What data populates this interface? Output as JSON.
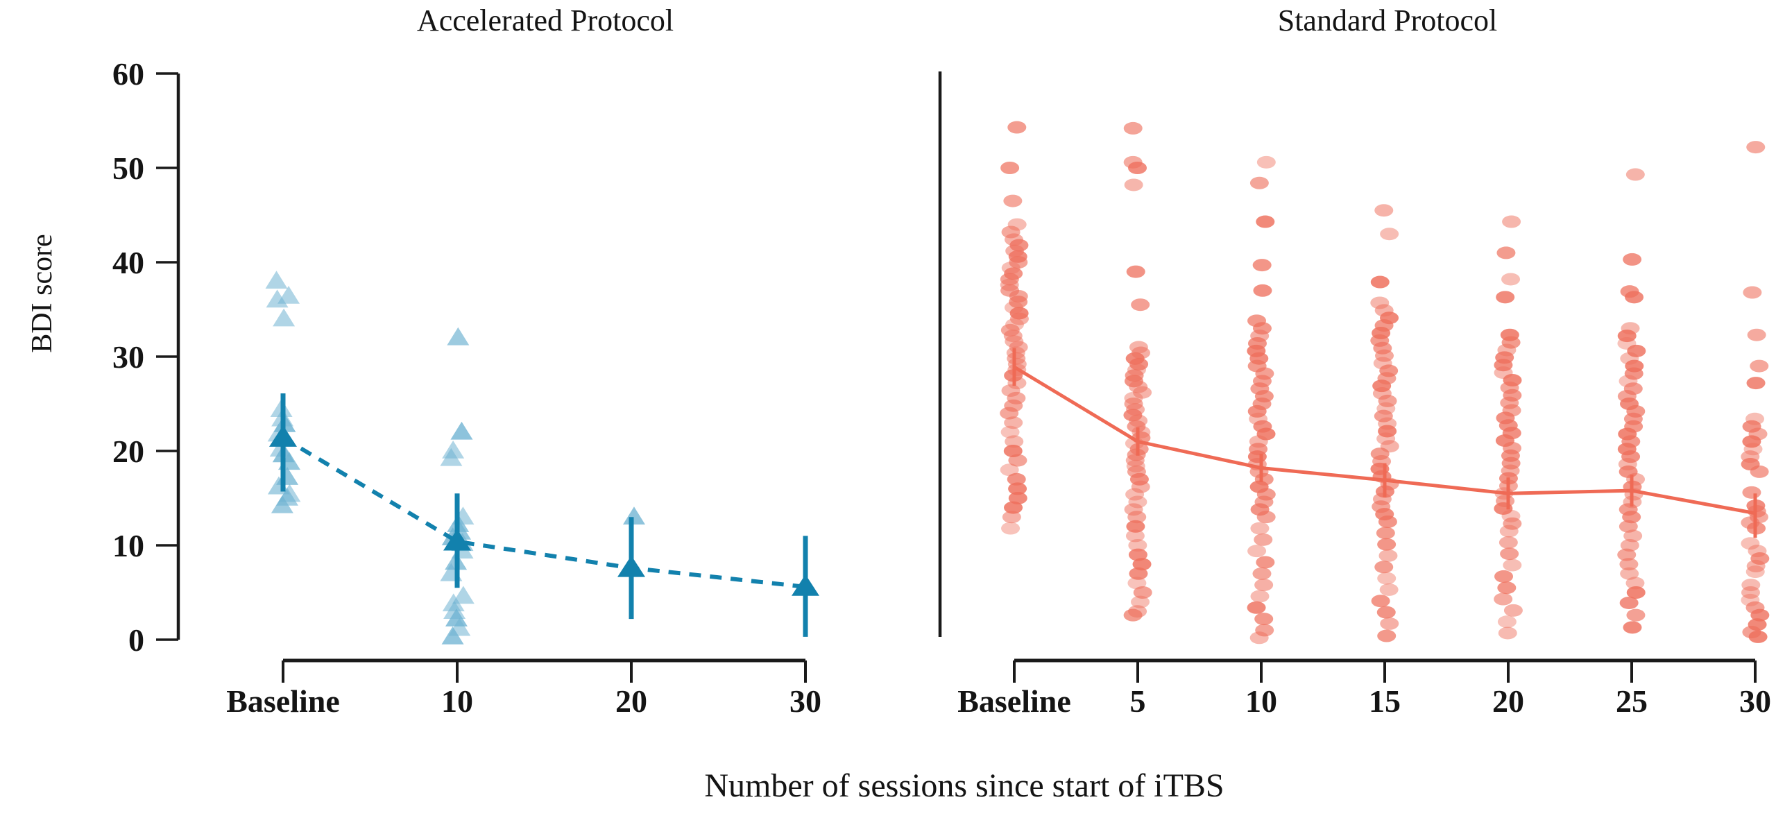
{
  "figure": {
    "xlabel": "Number of sessions since start of iTBS",
    "ylabel": "BDI score"
  },
  "chart_data": [
    {
      "type": "scatter",
      "panel": "left",
      "title": "Accelerated Protocol",
      "marker": "triangle",
      "line_style": "dashed",
      "point_color": "#6fb3d2",
      "accent_color": "#1281ad",
      "ylim": [
        0,
        60
      ],
      "yticks": [
        0,
        10,
        20,
        30,
        40,
        50,
        60
      ],
      "categories": [
        "Baseline",
        "10",
        "20",
        "30"
      ],
      "means": [
        21.4,
        10.4,
        7.6,
        5.6
      ],
      "ci_low": [
        15.7,
        5.5,
        2.2,
        0.3
      ],
      "ci_high": [
        26.1,
        15.5,
        13.0,
        11.0
      ],
      "points": [
        [
          38,
          36.4,
          36,
          34,
          24.4,
          23.4,
          22.8,
          21.8,
          20.2,
          19.6,
          18.8,
          17.2,
          16.2,
          15.4,
          15,
          14.2
        ],
        [
          32,
          22,
          20,
          19.2,
          13,
          12.2,
          11.4,
          10.8,
          10.2,
          9.4,
          8.2,
          7,
          4.6,
          3.8,
          3,
          2.2,
          1.2,
          0.3
        ],
        [
          13
        ],
        []
      ]
    },
    {
      "type": "scatter",
      "panel": "right",
      "title": "Standard Protocol",
      "marker": "circle",
      "line_style": "solid",
      "point_color": "#ee6f5c",
      "accent_color": "#ef6a55",
      "ylim": [
        0,
        60
      ],
      "yticks": [
        0,
        10,
        20,
        30,
        40,
        50,
        60
      ],
      "categories": [
        "Baseline",
        "5",
        "10",
        "15",
        "20",
        "25",
        "30"
      ],
      "means": [
        28.9,
        21.0,
        18.2,
        16.9,
        15.5,
        15.8,
        13.4
      ],
      "ci_low": [
        26.9,
        19.5,
        16.7,
        15.1,
        13.8,
        14.1,
        10.8
      ],
      "ci_high": [
        30.9,
        22.5,
        19.7,
        18.7,
        17.2,
        17.5,
        15.5
      ],
      "points": [
        [
          54.3,
          50,
          46.5,
          44,
          43.2,
          42.4,
          41.8,
          41.2,
          40.6,
          40,
          39.4,
          38.8,
          38.2,
          37.6,
          37,
          36.4,
          35.8,
          35.2,
          34.6,
          34,
          33.4,
          32.8,
          32.2,
          31.6,
          31,
          30.4,
          29.8,
          29.2,
          28.6,
          28,
          27.2,
          26.4,
          25.6,
          24.8,
          24,
          23,
          22,
          21,
          20,
          19,
          18,
          17,
          16,
          15,
          14,
          13,
          11.8
        ],
        [
          54.2,
          50.6,
          50,
          48.2,
          39,
          35.5,
          31,
          30.4,
          29.8,
          29.2,
          28.6,
          28,
          27.4,
          26.8,
          26.2,
          25.6,
          25,
          24.4,
          23.8,
          23.2,
          22.6,
          22,
          21.4,
          20.8,
          20.2,
          19.6,
          19,
          18.4,
          17.8,
          17,
          16.2,
          15.4,
          14.6,
          13.8,
          13,
          12,
          11,
          10,
          9,
          8,
          7,
          6,
          5,
          4,
          3,
          2.6
        ],
        [
          50.6,
          48.4,
          44.3,
          39.7,
          37,
          33.8,
          33,
          32.2,
          31.4,
          30.6,
          29.8,
          29,
          28.2,
          27.4,
          26.6,
          25.8,
          25,
          24.2,
          23.4,
          22.6,
          21.8,
          21,
          20.2,
          19.4,
          18.6,
          17.8,
          17,
          16.2,
          15.4,
          14.6,
          13.8,
          13,
          11.8,
          10.6,
          9.4,
          8.2,
          7,
          5.8,
          4.6,
          3.4,
          2.2,
          1,
          0.2
        ],
        [
          45.5,
          43,
          37.9,
          35.7,
          34.9,
          34.1,
          33.3,
          32.5,
          31.7,
          30.9,
          30.1,
          29.3,
          28.5,
          27.7,
          26.9,
          26.1,
          25.3,
          24.5,
          23.7,
          22.9,
          22.1,
          21.3,
          20.5,
          19.7,
          18.9,
          18.1,
          17.3,
          16.5,
          15.7,
          14.9,
          14.1,
          13.3,
          12.5,
          11.3,
          10.1,
          8.9,
          7.7,
          6.5,
          5.3,
          4.1,
          2.9,
          1.7,
          0.4
        ],
        [
          44.3,
          41,
          38.2,
          36.3,
          32.3,
          31.5,
          30.7,
          29.9,
          29.1,
          28.3,
          27.5,
          26.7,
          25.9,
          25.1,
          24.3,
          23.5,
          22.7,
          21.9,
          21.1,
          20.3,
          19.5,
          18.7,
          17.9,
          17.1,
          16.3,
          15.5,
          14.7,
          13.9,
          13.1,
          12.3,
          11.5,
          10.3,
          9.1,
          7.9,
          6.7,
          5.5,
          4.3,
          3.1,
          1.9,
          0.7
        ],
        [
          49.3,
          40.3,
          36.9,
          36.3,
          33,
          32.2,
          31.4,
          30.6,
          29.8,
          29,
          28.2,
          27.4,
          26.6,
          25.8,
          25,
          24.2,
          23.4,
          22.6,
          21.8,
          21,
          20.2,
          19.4,
          18.6,
          17.8,
          17,
          16.2,
          15.4,
          14.6,
          13.8,
          13,
          12,
          11,
          10,
          9,
          8,
          7,
          6,
          5,
          3.9,
          2.6,
          1.3
        ],
        [
          52.2,
          36.8,
          32.3,
          29,
          27.2,
          23.4,
          22.6,
          21.8,
          21,
          20.2,
          19.4,
          18.6,
          17.8,
          15.6,
          14.2,
          13.6,
          13,
          12.4,
          11.8,
          10.2,
          9.4,
          8.6,
          7.8,
          7.2,
          5.8,
          5,
          4.2,
          3.4,
          2.6,
          1.6,
          0.8,
          0.3
        ]
      ]
    }
  ]
}
